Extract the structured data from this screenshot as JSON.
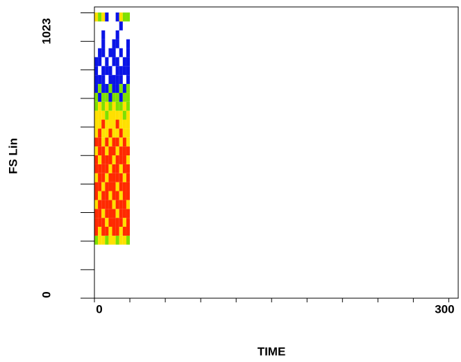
{
  "chart_data": {
    "type": "heatmap",
    "xlabel": "TIME",
    "ylabel": "FS Lin",
    "xlim": [
      0,
      308
    ],
    "xticks": [
      0,
      300
    ],
    "xminor_ticks": [
      30,
      60,
      90,
      120,
      150,
      180,
      210,
      240,
      270
    ],
    "ylim": [
      0,
      1044
    ],
    "yticks": [
      0,
      1023
    ],
    "yminor_ticks": [
      102.3,
      204.6,
      306.9,
      409.2,
      511.5,
      613.8,
      716.1,
      818.4,
      920.7
    ],
    "xbins": [
      0,
      3,
      6,
      9,
      12,
      15,
      18,
      21,
      24,
      27,
      30
    ],
    "ybins": [
      192,
      224,
      256,
      288,
      320,
      352,
      384,
      416,
      448,
      480,
      512,
      544,
      576,
      608,
      640,
      672,
      704,
      736,
      768,
      800,
      832,
      864,
      896,
      928,
      960,
      992,
      1024
    ],
    "colors": [
      null,
      "#0a14e6",
      "#7ee000",
      "#ffe000",
      "#ff2a00"
    ],
    "z": [
      [
        2,
        3,
        3,
        2,
        3,
        3,
        2,
        3,
        3,
        2
      ],
      [
        4,
        3,
        4,
        4,
        3,
        4,
        4,
        3,
        4,
        4
      ],
      [
        4,
        4,
        4,
        3,
        4,
        4,
        4,
        4,
        3,
        4
      ],
      [
        4,
        4,
        3,
        4,
        4,
        4,
        3,
        4,
        4,
        4
      ],
      [
        3,
        4,
        4,
        4,
        4,
        3,
        4,
        4,
        4,
        3
      ],
      [
        4,
        3,
        4,
        4,
        3,
        4,
        4,
        3,
        4,
        4
      ],
      [
        4,
        4,
        3,
        4,
        4,
        4,
        3,
        4,
        4,
        4
      ],
      [
        3,
        4,
        4,
        3,
        4,
        4,
        4,
        4,
        3,
        4
      ],
      [
        4,
        4,
        4,
        4,
        3,
        4,
        4,
        3,
        4,
        4
      ],
      [
        4,
        3,
        4,
        4,
        4,
        3,
        4,
        4,
        4,
        3
      ],
      [
        3,
        4,
        4,
        3,
        4,
        4,
        3,
        4,
        4,
        4
      ],
      [
        4,
        4,
        3,
        4,
        3,
        4,
        4,
        3,
        4,
        3
      ],
      [
        3,
        4,
        3,
        3,
        4,
        3,
        3,
        4,
        3,
        3
      ],
      [
        3,
        3,
        4,
        3,
        3,
        3,
        4,
        3,
        3,
        3
      ],
      [
        3,
        3,
        3,
        2,
        3,
        3,
        3,
        3,
        2,
        3
      ],
      [
        2,
        3,
        2,
        3,
        2,
        3,
        2,
        2,
        3,
        2
      ],
      [
        2,
        1,
        2,
        2,
        1,
        2,
        2,
        1,
        2,
        2
      ],
      [
        1,
        2,
        1,
        1,
        2,
        1,
        1,
        2,
        1,
        2
      ],
      [
        1,
        1,
        1,
        0,
        1,
        1,
        1,
        1,
        0,
        1
      ],
      [
        1,
        0,
        1,
        1,
        1,
        0,
        1,
        1,
        1,
        1
      ],
      [
        1,
        1,
        0,
        1,
        0,
        1,
        1,
        0,
        1,
        1
      ],
      [
        0,
        1,
        1,
        0,
        1,
        1,
        0,
        1,
        0,
        1
      ],
      [
        0,
        0,
        1,
        0,
        0,
        1,
        1,
        0,
        0,
        1
      ],
      [
        0,
        0,
        1,
        0,
        0,
        0,
        1,
        0,
        0,
        0
      ],
      [
        0,
        0,
        0,
        0,
        0,
        0,
        0,
        1,
        0,
        0
      ],
      [
        3,
        2,
        3,
        1,
        0,
        0,
        1,
        3,
        2,
        2
      ]
    ]
  }
}
